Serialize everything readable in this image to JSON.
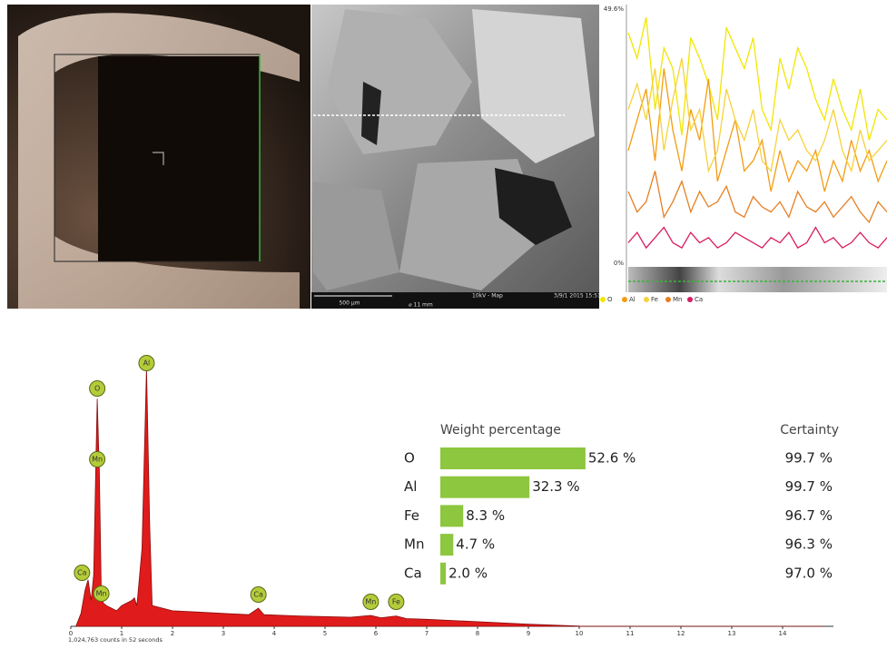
{
  "images": {
    "sem_scale": "500 µm",
    "sem_width": "⌀ 11 mm",
    "sem_mode": "10kV - Map",
    "sem_date": "3/9/1 2015 15:51"
  },
  "line_scan": {
    "type": "line",
    "ylim": [
      0,
      49.6
    ],
    "yticks": [
      {
        "value": 49.6,
        "label": "49.6%"
      },
      {
        "value": 0,
        "label": "0%"
      }
    ],
    "series": [
      {
        "name": "O",
        "color": "#f2e600",
        "values": [
          45,
          40,
          48,
          30,
          42,
          38,
          25,
          44,
          40,
          35,
          28,
          46,
          42,
          38,
          44,
          30,
          26,
          40,
          34,
          42,
          38,
          32,
          28,
          36,
          30,
          26,
          34,
          24,
          30,
          28
        ]
      },
      {
        "name": "Al",
        "color": "#f39c12",
        "values": [
          22,
          28,
          34,
          20,
          38,
          26,
          18,
          30,
          24,
          36,
          16,
          22,
          28,
          18,
          20,
          24,
          14,
          22,
          16,
          20,
          18,
          22,
          14,
          20,
          16,
          24,
          18,
          22,
          16,
          20
        ]
      },
      {
        "name": "Fe",
        "color": "#f7d23a",
        "values": [
          30,
          35,
          28,
          38,
          22,
          32,
          40,
          26,
          30,
          18,
          22,
          34,
          28,
          24,
          30,
          20,
          18,
          28,
          24,
          26,
          22,
          20,
          24,
          30,
          22,
          18,
          26,
          20,
          22,
          24
        ]
      },
      {
        "name": "Mn",
        "color": "#e67e22",
        "values": [
          14,
          10,
          12,
          18,
          9,
          12,
          16,
          10,
          14,
          11,
          12,
          15,
          10,
          9,
          13,
          11,
          10,
          12,
          9,
          14,
          11,
          10,
          12,
          9,
          11,
          13,
          10,
          8,
          12,
          10
        ]
      },
      {
        "name": "Ca",
        "color": "#d81b60",
        "values": [
          4,
          6,
          3,
          5,
          7,
          4,
          3,
          6,
          4,
          5,
          3,
          4,
          6,
          5,
          4,
          3,
          5,
          4,
          6,
          3,
          4,
          7,
          4,
          5,
          3,
          4,
          6,
          4,
          3,
          5
        ]
      }
    ]
  },
  "spectrum": {
    "type": "area",
    "color": "#e01b1b",
    "x": [
      0.1,
      0.2,
      0.28,
      0.34,
      0.4,
      0.45,
      0.5,
      0.52,
      0.56,
      0.6,
      0.64,
      0.7,
      0.8,
      0.9,
      1.0,
      1.1,
      1.2,
      1.25,
      1.3,
      1.4,
      1.49,
      1.55,
      1.6,
      1.8,
      2.0,
      2.5,
      3.0,
      3.5,
      3.69,
      3.8,
      4.5,
      5.5,
      5.9,
      6.1,
      6.4,
      6.6,
      7.0,
      8.0,
      9.0,
      10.0,
      11.0,
      14.8
    ],
    "values": [
      0,
      5,
      14,
      18,
      10,
      20,
      70,
      88,
      60,
      12,
      9,
      8,
      7,
      6,
      8,
      9,
      10,
      11,
      8,
      30,
      100,
      40,
      8,
      7,
      6,
      5.5,
      5,
      4.5,
      7,
      4.5,
      4,
      3.5,
      4.2,
      3.3,
      4,
      3,
      2.7,
      1.8,
      0.8,
      0.1,
      0,
      0
    ],
    "xlim": [
      0,
      15
    ],
    "ylim": [
      0,
      100
    ],
    "xticks": [
      0,
      1,
      2,
      3,
      4,
      5,
      6,
      7,
      8,
      9,
      10,
      11,
      12,
      13,
      14
    ],
    "caption": "1,024,763 counts in 52 seconds",
    "peaks": [
      {
        "label": "O",
        "energy": 0.52
      },
      {
        "label": "Mn",
        "energy": 0.52
      },
      {
        "label": "Ca",
        "energy": 0.22
      },
      {
        "label": "Mn",
        "energy": 0.6
      },
      {
        "label": "Al",
        "energy": 1.49
      },
      {
        "label": "Ca",
        "energy": 3.69
      },
      {
        "label": "Mn",
        "energy": 5.9
      },
      {
        "label": "Fe",
        "energy": 6.4
      }
    ]
  },
  "results": {
    "type": "bar",
    "header_weight": "Weight percentage",
    "header_certainty": "Certainty",
    "color": "#8dc63f",
    "categories": [
      "O",
      "Al",
      "Fe",
      "Mn",
      "Ca"
    ],
    "values": [
      52.6,
      32.3,
      8.3,
      4.7,
      2.0
    ],
    "value_labels": [
      "52.6 %",
      "32.3 %",
      "8.3 %",
      "4.7 %",
      "2.0 %"
    ],
    "certainty": [
      "99.7 %",
      "99.7 %",
      "96.7 %",
      "96.3 %",
      "97.0 %"
    ]
  }
}
